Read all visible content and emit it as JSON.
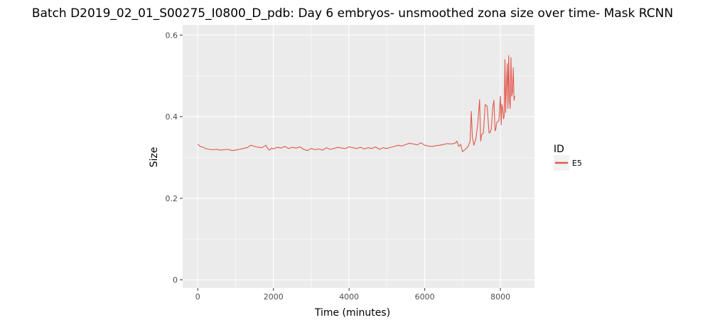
{
  "chart_data": {
    "type": "line",
    "title": "Batch D2019_02_01_S00275_I0800_D_pdb: Day 6 embryos- unsmoothed zona size over time- Mask RCNN",
    "xlabel": "Time (minutes)",
    "ylabel": "Size",
    "xlim": [
      -400,
      8900
    ],
    "ylim": [
      -0.02,
      0.625
    ],
    "x_ticks": [
      0,
      2000,
      4000,
      6000,
      8000
    ],
    "x_tick_labels": [
      "0",
      "2000",
      "4000",
      "6000",
      "8000"
    ],
    "y_ticks": [
      0,
      0.2,
      0.4,
      0.6
    ],
    "y_tick_labels": [
      "0",
      "0.2",
      "0.4",
      "0.6"
    ],
    "grid": true,
    "legend": {
      "title": "ID",
      "position": "right"
    },
    "colors": {
      "panel": "#ebebeb",
      "grid": "#ffffff",
      "E5": "#e0584b"
    },
    "series": [
      {
        "name": "E5",
        "x": [
          0,
          50,
          100,
          150,
          200,
          300,
          400,
          500,
          600,
          700,
          800,
          900,
          1000,
          1100,
          1200,
          1300,
          1400,
          1500,
          1600,
          1700,
          1800,
          1850,
          1900,
          1950,
          2000,
          2100,
          2200,
          2300,
          2400,
          2500,
          2600,
          2700,
          2800,
          2900,
          3000,
          3100,
          3200,
          3300,
          3400,
          3500,
          3600,
          3700,
          3800,
          3900,
          4000,
          4100,
          4200,
          4300,
          4400,
          4500,
          4600,
          4700,
          4800,
          4900,
          5000,
          5100,
          5200,
          5300,
          5400,
          5500,
          5600,
          5700,
          5800,
          5900,
          6000,
          6100,
          6200,
          6300,
          6400,
          6500,
          6600,
          6700,
          6800,
          6850,
          6900,
          6950,
          7000,
          7050,
          7100,
          7150,
          7200,
          7230,
          7260,
          7300,
          7350,
          7400,
          7450,
          7480,
          7500,
          7550,
          7600,
          7650,
          7700,
          7730,
          7760,
          7800,
          7830,
          7860,
          7880,
          7900,
          7930,
          7960,
          8000,
          8020,
          8040,
          8060,
          8080,
          8100,
          8120,
          8140,
          8160,
          8180,
          8200,
          8220,
          8240,
          8260,
          8280,
          8300,
          8320,
          8340,
          8360,
          8380
        ],
        "values": [
          0.333,
          0.328,
          0.326,
          0.325,
          0.322,
          0.32,
          0.319,
          0.32,
          0.318,
          0.319,
          0.32,
          0.317,
          0.318,
          0.32,
          0.322,
          0.324,
          0.33,
          0.327,
          0.325,
          0.324,
          0.33,
          0.322,
          0.318,
          0.323,
          0.321,
          0.325,
          0.323,
          0.327,
          0.322,
          0.325,
          0.323,
          0.326,
          0.32,
          0.317,
          0.322,
          0.319,
          0.321,
          0.318,
          0.324,
          0.32,
          0.322,
          0.325,
          0.323,
          0.322,
          0.326,
          0.324,
          0.322,
          0.325,
          0.321,
          0.324,
          0.322,
          0.326,
          0.32,
          0.324,
          0.322,
          0.325,
          0.327,
          0.33,
          0.328,
          0.332,
          0.335,
          0.333,
          0.331,
          0.336,
          0.33,
          0.328,
          0.327,
          0.329,
          0.33,
          0.332,
          0.334,
          0.333,
          0.335,
          0.34,
          0.327,
          0.332,
          0.314,
          0.318,
          0.322,
          0.328,
          0.34,
          0.413,
          0.35,
          0.33,
          0.345,
          0.38,
          0.442,
          0.34,
          0.355,
          0.36,
          0.43,
          0.425,
          0.36,
          0.362,
          0.37,
          0.425,
          0.44,
          0.365,
          0.37,
          0.385,
          0.388,
          0.39,
          0.45,
          0.38,
          0.43,
          0.42,
          0.395,
          0.4,
          0.54,
          0.41,
          0.48,
          0.53,
          0.42,
          0.55,
          0.44,
          0.42,
          0.545,
          0.45,
          0.46,
          0.52,
          0.44,
          0.45
        ]
      }
    ]
  }
}
